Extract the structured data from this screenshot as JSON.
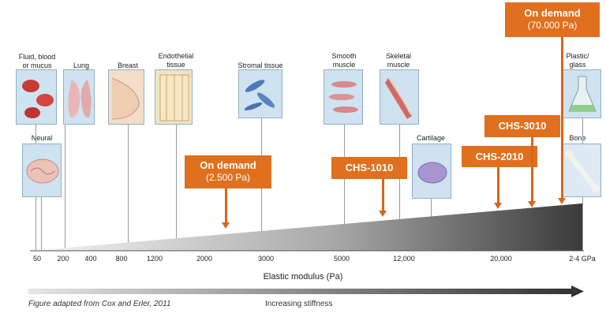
{
  "tissues": {
    "fluid": "Fluid, blood\nor mucus",
    "lung": "Lung",
    "breast": "Breast",
    "endothelial": "Endothelial\ntissue",
    "stromal": "Stromal tissue",
    "smooth": "Smooth\nmuscle",
    "skeletal": "Skeletal\nmuscle",
    "plastic": "Plastic/\nglass",
    "neural": "Neural",
    "cartilage": "Cartilage",
    "bone": "Bone"
  },
  "axis": {
    "ticks": [
      "50",
      "200",
      "400",
      "800",
      "1200",
      "2000",
      "3000",
      "5000",
      "12,000",
      "20,000",
      "2-4 GPa"
    ],
    "title": "Elastic modulus (Pa)"
  },
  "callouts": {
    "on_demand_low_main": "On demand",
    "on_demand_low_sub": "(2.500 Pa)",
    "chs1010": "CHS-1010",
    "chs2010": "CHS-2010",
    "chs3010": "CHS-3010",
    "on_demand_high_main": "On demand",
    "on_demand_high_sub": "(70.000 Pa)"
  },
  "footer": {
    "caption": "Figure adapted from Cox and Erler, 2011",
    "stiffness": "Increasing stiffness"
  },
  "colors": {
    "callout": "#e0701e",
    "tissue_panel": "#cfe2f0"
  }
}
